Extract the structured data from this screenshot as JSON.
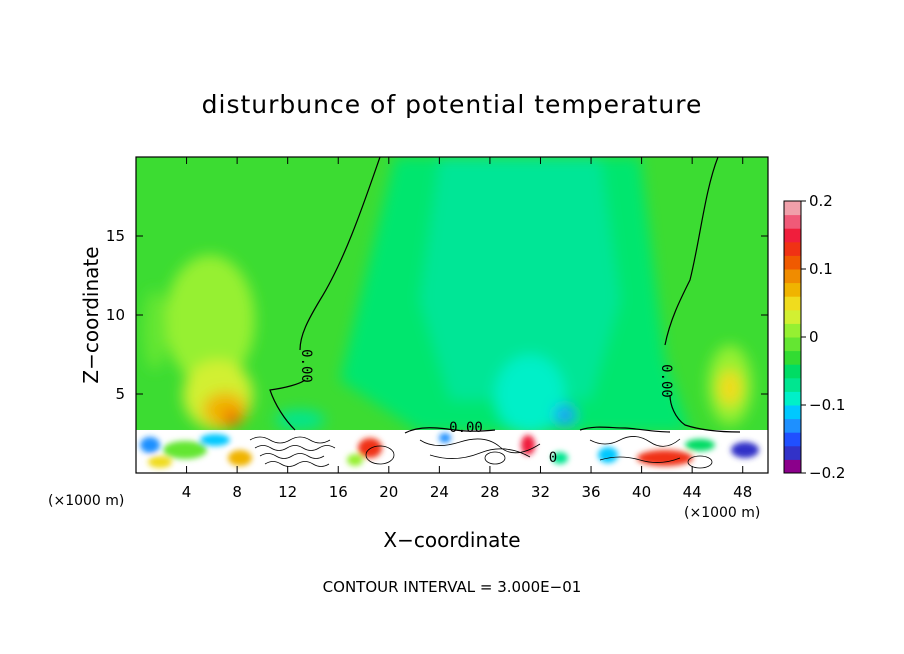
{
  "chart_data": {
    "type": "heatmap",
    "title": "disturbunce of potential temperature",
    "xlabel": "X−coordinate",
    "ylabel": "Z−coordinate",
    "x_unit_left": "(×1000 m)",
    "x_unit_right": "(×1000 m)",
    "xlim": [
      0,
      50
    ],
    "ylim": [
      0,
      20
    ],
    "xticks": [
      4,
      8,
      12,
      16,
      20,
      24,
      28,
      32,
      36,
      40,
      44,
      48
    ],
    "xtick_labels": [
      "4",
      "8",
      "12",
      "16",
      "20",
      "24",
      "28",
      "32",
      "36",
      "40",
      "44",
      "48"
    ],
    "yticks": [
      5,
      10,
      15
    ],
    "ytick_labels": [
      "5",
      "10",
      "15"
    ],
    "colorbar": {
      "min": -0.2,
      "max": 0.2,
      "ticks": [
        0.2,
        0.1,
        0,
        -0.1,
        -0.2
      ],
      "tick_labels": [
        "0.2",
        "0.1",
        "0",
        "−0.1",
        "−0.2"
      ],
      "colors": [
        "#8b008b",
        "#3232c8",
        "#2050ff",
        "#1e90ff",
        "#00c8ff",
        "#00f0c8",
        "#00e690",
        "#00dc64",
        "#32dc32",
        "#64e632",
        "#96f032",
        "#d2f032",
        "#f0dc1e",
        "#f0b400",
        "#f08c00",
        "#f05a00",
        "#f03214",
        "#f01e3c",
        "#f05a78",
        "#f0a0aa"
      ]
    },
    "contour_labels": [
      "0.00",
      "0.00",
      "0.00",
      "0"
    ],
    "footer": "CONTOUR INTERVAL = 3.000E−01"
  }
}
